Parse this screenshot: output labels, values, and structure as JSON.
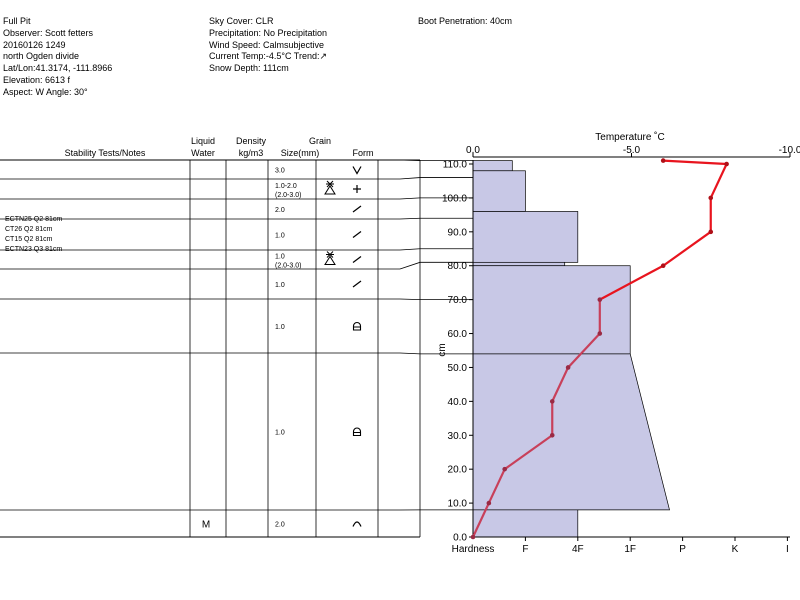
{
  "header": {
    "left": [
      "Full Pit",
      "Observer: Scott fetters",
      "20160126 1249",
      "north Ogden divide",
      "Lat/Lon:41.3174, -111.8966",
      "Elevation: 6613 f",
      "Aspect: W Angle: 30°"
    ],
    "middle": [
      "Sky Cover: CLR",
      "Precipitation: No Precipitation",
      "Wind Speed: Calmsubjective",
      "Current Temp:-4.5°C Trend:↗",
      "Snow Depth: 111cm"
    ],
    "right": [
      "Boot Penetration: 40cm"
    ]
  },
  "columns": {
    "stability": "Stability Tests/Notes",
    "liquid_1": "Liquid",
    "liquid_2": "Water",
    "density_1": "Density",
    "density_2": "kg/m3",
    "grain_1": "Grain",
    "grain_2": "Size(mm)",
    "form": "Form"
  },
  "notes": [
    "ECTN25 Q2 81cm",
    "CT26 Q2 81cm",
    "CT15 Q2 81cm",
    "ECTN23 Q3 81cm"
  ],
  "layers": [
    {
      "top": 111,
      "bottom": 106,
      "grain": "3.0",
      "grain2": "",
      "form": "V",
      "form2": "",
      "water": "",
      "hardness": "1F-"
    },
    {
      "top": 106,
      "bottom": 100,
      "grain": "1.0-2.0",
      "grain2": "(2.0-3.0)",
      "form": "+",
      "form2": "faceted-rounded",
      "water": "",
      "hardness": "1F+"
    },
    {
      "top": 100,
      "bottom": 94,
      "grain": "2.0",
      "grain2": "",
      "form": "/",
      "form2": "",
      "water": "",
      "hardness": "4F"
    },
    {
      "top": 94,
      "bottom": 85,
      "grain": "1.0",
      "grain2": "",
      "form": "/",
      "form2": "",
      "water": "",
      "hardness": "4F"
    },
    {
      "top": 85,
      "bottom": 81,
      "grain": "1.0",
      "grain2": "(2.0-3.0)",
      "form": "/",
      "form2": "faceted-rounded",
      "water": "",
      "hardness": "4F-"
    },
    {
      "top": 81,
      "bottom": 70,
      "grain": "1.0",
      "grain2": "",
      "form": "/",
      "form2": "",
      "water": "",
      "hardness": "1F"
    },
    {
      "top": 70,
      "bottom": 54,
      "grain": "1.0",
      "grain2": "",
      "form": "rounded",
      "form2": "",
      "water": "",
      "hardness": "1F"
    },
    {
      "top": 54,
      "bottom": 8,
      "grain": "1.0",
      "grain2": "",
      "form": "rounded",
      "form2": "",
      "water": "",
      "hardness": "1F to P"
    },
    {
      "top": 8,
      "bottom": 0,
      "grain": "2.0",
      "grain2": "",
      "form": "^",
      "form2": "",
      "water": "M",
      "hardness": "4F"
    }
  ],
  "chart_data": {
    "type": "line",
    "title": "Temperature ˚C",
    "xlabel": "Hardness",
    "ylabel": "cm",
    "temp_axis": {
      "ticks": [
        "0.0",
        "-5.0",
        "-10.0"
      ],
      "range": [
        0,
        -10
      ]
    },
    "height_axis": {
      "ticks": [
        "0.0",
        "10.0",
        "20.0",
        "30.0",
        "40.0",
        "50.0",
        "60.0",
        "70.0",
        "80.0",
        "90.0",
        "100.0",
        "110.0"
      ],
      "range": [
        0,
        111
      ]
    },
    "hardness_ticks": [
      "F",
      "4F",
      "1F",
      "P",
      "K",
      "I"
    ],
    "temperature_profile": [
      {
        "h": 0,
        "t": 0.0
      },
      {
        "h": 10,
        "t": -0.5
      },
      {
        "h": 20,
        "t": -1.0
      },
      {
        "h": 30,
        "t": -2.5
      },
      {
        "h": 40,
        "t": -2.5
      },
      {
        "h": 50,
        "t": -3.0
      },
      {
        "h": 60,
        "t": -4.0
      },
      {
        "h": 70,
        "t": -4.0
      },
      {
        "h": 80,
        "t": -6.0
      },
      {
        "h": 90,
        "t": -7.5
      },
      {
        "h": 100,
        "t": -7.5
      },
      {
        "h": 110,
        "t": -8.0
      },
      {
        "h": 111,
        "t": -6.0
      }
    ],
    "hardness_profile": [
      {
        "top": 111,
        "bottom": 108,
        "hardness": 0.75
      },
      {
        "top": 108,
        "bottom": 96,
        "hardness": 1.0
      },
      {
        "top": 96,
        "bottom": 81,
        "hardness": 2.0
      },
      {
        "top": 81,
        "bottom": 80,
        "hardness": 1.75
      },
      {
        "top": 80,
        "bottom": 54,
        "hardness": 3.0
      },
      {
        "top": 54,
        "bottom": 8,
        "hardness_top": 3.0,
        "hardness_bottom": 3.75
      },
      {
        "top": 8,
        "bottom": 0,
        "hardness": 2.0
      }
    ],
    "colors": {
      "fill": "#c8c8e6",
      "temp_upper": "#e8141e",
      "temp_lower": "#c8405a"
    }
  }
}
